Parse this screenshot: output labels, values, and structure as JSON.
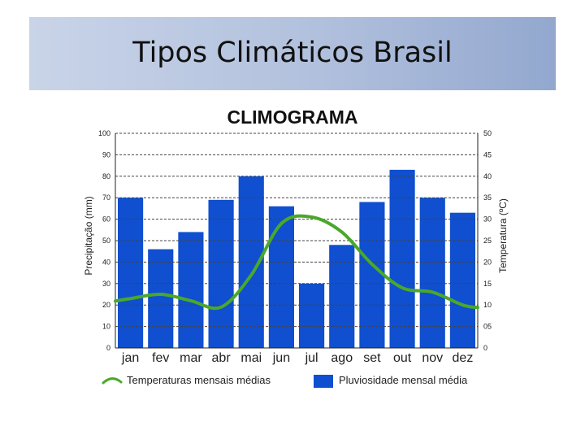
{
  "slide": {
    "title": "Tipos Climáticos Brasil"
  },
  "colors": {
    "bar": "#0f4fd0",
    "line": "#4aa82a",
    "grid": "#444444",
    "title_band": "#a8b8d8"
  },
  "chart_data": {
    "type": "bar",
    "title": "CLIMOGRAMA",
    "categories": [
      "jan",
      "fev",
      "mar",
      "abr",
      "mai",
      "jun",
      "jul",
      "ago",
      "set",
      "out",
      "nov",
      "dez"
    ],
    "series": [
      {
        "name": "Pluviosidade mensal média",
        "type": "bar",
        "axis": "left",
        "values": [
          70,
          46,
          54,
          69,
          80,
          66,
          30,
          48,
          68,
          83,
          70,
          63
        ]
      },
      {
        "name": "Temperaturas mensais médias",
        "type": "line",
        "axis": "right",
        "values": [
          11.5,
          12.5,
          11,
          9.5,
          17,
          29,
          30.5,
          27,
          19.5,
          14,
          13,
          10
        ]
      }
    ],
    "ylabel": "Precipitação (mm)",
    "ylabel_right": "Temperatura (ºC)",
    "ylim": [
      0,
      100
    ],
    "ylim_right": [
      0,
      50
    ],
    "yticks": [
      "0",
      "10",
      "20",
      "30",
      "40",
      "50",
      "60",
      "70",
      "80",
      "90",
      "100"
    ],
    "yticks_right": [
      "0",
      "05",
      "10",
      "15",
      "20",
      "25",
      "30",
      "35",
      "40",
      "45",
      "50"
    ],
    "grid": true,
    "legend_position": "bottom"
  }
}
